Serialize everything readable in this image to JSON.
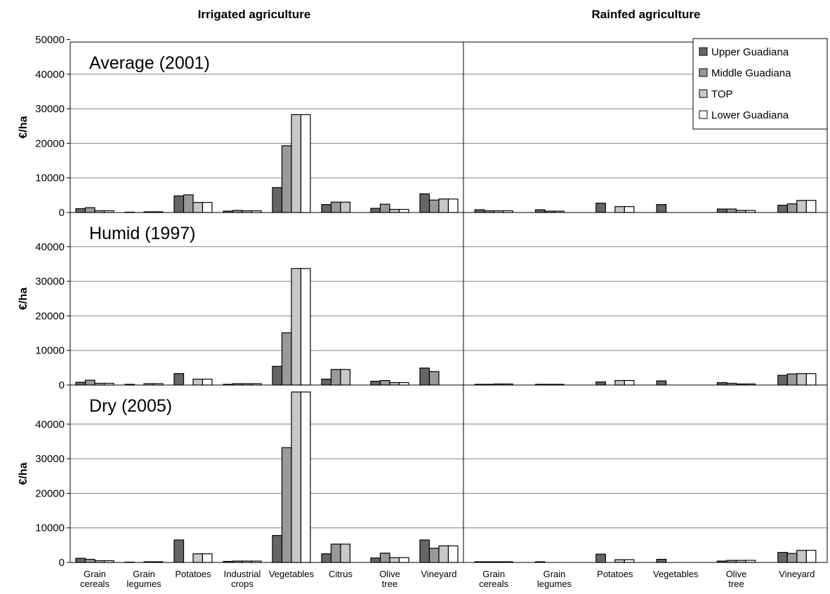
{
  "chart_data": {
    "type": "bar",
    "column_titles": [
      "Irrigated agriculture",
      "Rainfed agriculture"
    ],
    "ylabel": "€/ha",
    "ylim": [
      0,
      50000
    ],
    "yticks_top": [
      0,
      10000,
      20000,
      30000,
      40000,
      50000
    ],
    "yticks": [
      0,
      10000,
      20000,
      30000,
      40000
    ],
    "grid": true,
    "legend_placement": "top-right",
    "series": [
      {
        "name": "Upper Guadiana",
        "color": "#666666"
      },
      {
        "name": "Middle Guadiana",
        "color": "#999999"
      },
      {
        "name": "TOP",
        "color": "#c8c8c8"
      },
      {
        "name": "Lower Guadiana",
        "color": "#ffffff"
      }
    ],
    "irrigated_categories": [
      "Grain\ncereals",
      "Grain\nlegumes",
      "Potatoes",
      "Industrial\ncrops",
      "Vegetables",
      "Citrus",
      "Olive\ntree",
      "Vineyard"
    ],
    "rainfed_categories": [
      "Grain\ncereals",
      "Grain\nlegumes",
      "Potatoes",
      "Vegetables",
      "Olive\ntree",
      "Vineyard"
    ],
    "panels": [
      {
        "title": "Average (2001)",
        "irrigated": [
          [
            1100,
            1400,
            500,
            500
          ],
          [
            100,
            0,
            200,
            200
          ],
          [
            4800,
            5100,
            2900,
            2900
          ],
          [
            400,
            600,
            500,
            500
          ],
          [
            7200,
            19300,
            28300,
            28300
          ],
          [
            2300,
            3000,
            3000,
            0
          ],
          [
            1200,
            2400,
            900,
            900
          ],
          [
            5400,
            3600,
            3900,
            3900
          ]
        ],
        "rainfed": [
          [
            800,
            500,
            500,
            500
          ],
          [
            800,
            400,
            400,
            0
          ],
          [
            2700,
            0,
            1700,
            1700
          ],
          [
            2300,
            0,
            0,
            0
          ],
          [
            1000,
            1000,
            600,
            600
          ],
          [
            2100,
            2500,
            3500,
            3500
          ]
        ]
      },
      {
        "title": "Humid (1997)",
        "irrigated": [
          [
            800,
            1400,
            500,
            500
          ],
          [
            200,
            0,
            400,
            400
          ],
          [
            3300,
            0,
            1700,
            1700
          ],
          [
            200,
            400,
            400,
            400
          ],
          [
            5400,
            15100,
            33700,
            33700
          ],
          [
            1700,
            4500,
            4500,
            0
          ],
          [
            1100,
            1300,
            700,
            700
          ],
          [
            4900,
            3900,
            0,
            0
          ]
        ],
        "rainfed": [
          [
            200,
            200,
            300,
            300
          ],
          [
            200,
            200,
            200,
            0
          ],
          [
            900,
            0,
            1300,
            1300
          ],
          [
            1200,
            0,
            0,
            0
          ],
          [
            700,
            500,
            300,
            300
          ],
          [
            2800,
            3200,
            3300,
            3300
          ]
        ]
      },
      {
        "title": "Dry (2005)",
        "irrigated": [
          [
            1200,
            900,
            500,
            500
          ],
          [
            100,
            0,
            200,
            200
          ],
          [
            6500,
            0,
            2500,
            2500
          ],
          [
            300,
            400,
            400,
            400
          ],
          [
            7800,
            33200,
            49300,
            49300
          ],
          [
            2500,
            5300,
            5300,
            0
          ],
          [
            1300,
            2700,
            1400,
            1400
          ],
          [
            6500,
            4100,
            4800,
            4800
          ]
        ],
        "rainfed": [
          [
            200,
            200,
            200,
            200
          ],
          [
            200,
            0,
            0,
            0
          ],
          [
            2400,
            0,
            800,
            800
          ],
          [
            900,
            0,
            0,
            0
          ],
          [
            400,
            600,
            600,
            600
          ],
          [
            2900,
            2600,
            3500,
            3500
          ]
        ]
      }
    ]
  }
}
